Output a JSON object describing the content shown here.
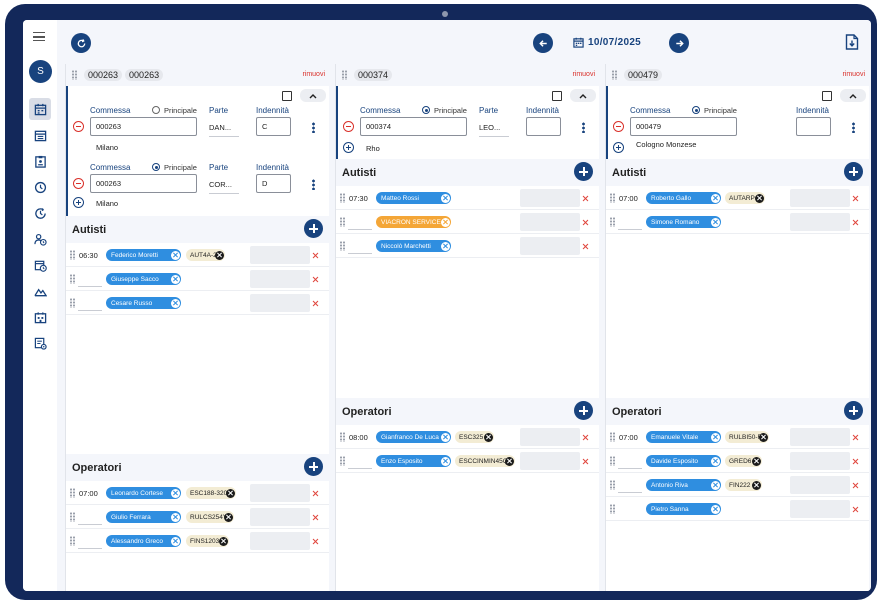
{
  "sidebar": {
    "avatar_initial": "S",
    "icons": [
      "calendar-icon",
      "schedule-list-icon",
      "clipboard-badge-icon",
      "clock-icon",
      "clock-rotate-icon",
      "user-clock-icon",
      "calendar-clock-icon",
      "mountain-icon",
      "building-calendar-icon",
      "list-settings-icon"
    ]
  },
  "topbar": {
    "date": "10/07/2025"
  },
  "labels": {
    "commessa": "Commessa",
    "principale": "Principale",
    "parte": "Parte",
    "indennita": "Indennità",
    "autisti": "Autisti",
    "operatori": "Operatori",
    "rimuovi": "rimuovi"
  },
  "columns": [
    {
      "codes": [
        "000263",
        "000263"
      ],
      "commesse": [
        {
          "commessa": "000263",
          "principale": false,
          "parte": "DAN...",
          "indennita": "C",
          "city": "Milano"
        },
        {
          "commessa": "000263",
          "principale": true,
          "parte": "COR...",
          "indennita": "D",
          "city": "Milano"
        }
      ],
      "autisti": [
        {
          "time": "06:30",
          "name": "Federico Moretti",
          "vehicle": "AUT4A-2"
        },
        {
          "time": "",
          "name": "Giuseppe Sacco",
          "vehicle": ""
        },
        {
          "time": "",
          "name": "Cesare Russo",
          "vehicle": ""
        }
      ],
      "operatori": [
        {
          "time": "07:00",
          "name": "Leonardo Cortese",
          "vehicle": "ESC188-320"
        },
        {
          "time": "",
          "name": "Giulio Ferrara",
          "vehicle": "RULCS254Y"
        },
        {
          "time": "",
          "name": "Alessandro Greco",
          "vehicle": "FINS1203"
        }
      ]
    },
    {
      "codes": [
        "000374"
      ],
      "commesse": [
        {
          "commessa": "000374",
          "principale": true,
          "parte": "LEO...",
          "indennita": "",
          "city": "Rho"
        }
      ],
      "autisti": [
        {
          "time": "07:30",
          "name": "Matteo Rossi",
          "vehicle": ""
        },
        {
          "time": "",
          "name": "VIACRON SERVICE...",
          "vehicle": "",
          "color": "orange"
        },
        {
          "time": "",
          "name": "Niccolò Marchetti",
          "vehicle": ""
        }
      ],
      "operatori": [
        {
          "time": "08:00",
          "name": "Gianfranco De Luca",
          "vehicle": "ESC325"
        },
        {
          "time": "",
          "name": "Enzo Esposito",
          "vehicle": "ESCCINMIN45Q"
        }
      ]
    },
    {
      "codes": [
        "000479"
      ],
      "commesse": [
        {
          "commessa": "000479",
          "principale": true,
          "parte": "",
          "indennita": "",
          "city": "Cologno Monzese"
        }
      ],
      "autisti": [
        {
          "time": "07:00",
          "name": "Roberto Gallo",
          "vehicle": "AUTARP"
        },
        {
          "time": "",
          "name": "Simone Romano",
          "vehicle": ""
        }
      ],
      "operatori": [
        {
          "time": "07:00",
          "name": "Emanuele Vitale",
          "vehicle": "RULBI50-F"
        },
        {
          "time": "",
          "name": "Davide Esposito",
          "vehicle": "GRED6"
        },
        {
          "time": "",
          "name": "Antonio Riva",
          "vehicle": "FIN222"
        },
        {
          "time": "",
          "name": "Pietro Sanna",
          "vehicle": ""
        }
      ]
    }
  ]
}
